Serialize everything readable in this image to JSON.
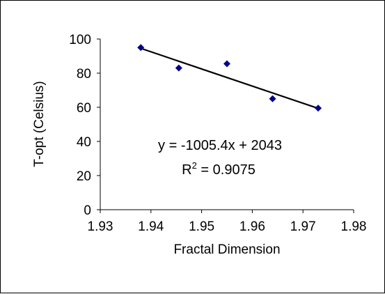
{
  "chart_data": {
    "type": "scatter",
    "xlabel": "Fractal Dimension",
    "ylabel": "T-opt (Celsius)",
    "xlim": [
      1.93,
      1.98
    ],
    "ylim": [
      0,
      100
    ],
    "x_ticks": [
      "1.93",
      "1.94",
      "1.95",
      "1.96",
      "1.97",
      "1.98"
    ],
    "y_ticks": [
      "0",
      "20",
      "40",
      "60",
      "80",
      "100"
    ],
    "grid": false,
    "legend": "none",
    "marker_color": "#00008B",
    "trendline_color": "#000000",
    "points": [
      {
        "x": 1.938,
        "y": 95
      },
      {
        "x": 1.9455,
        "y": 83
      },
      {
        "x": 1.955,
        "y": 85.5
      },
      {
        "x": 1.964,
        "y": 65
      },
      {
        "x": 1.973,
        "y": 59.5
      }
    ],
    "trendline": {
      "slope": -1005.4,
      "intercept": 2043,
      "x_range": [
        1.938,
        1.973
      ]
    },
    "annotations": {
      "equation": "y = -1005.4x + 2043",
      "r2_prefix": "R",
      "r2_sup": "2",
      "r2_value": " = 0.9075"
    }
  }
}
